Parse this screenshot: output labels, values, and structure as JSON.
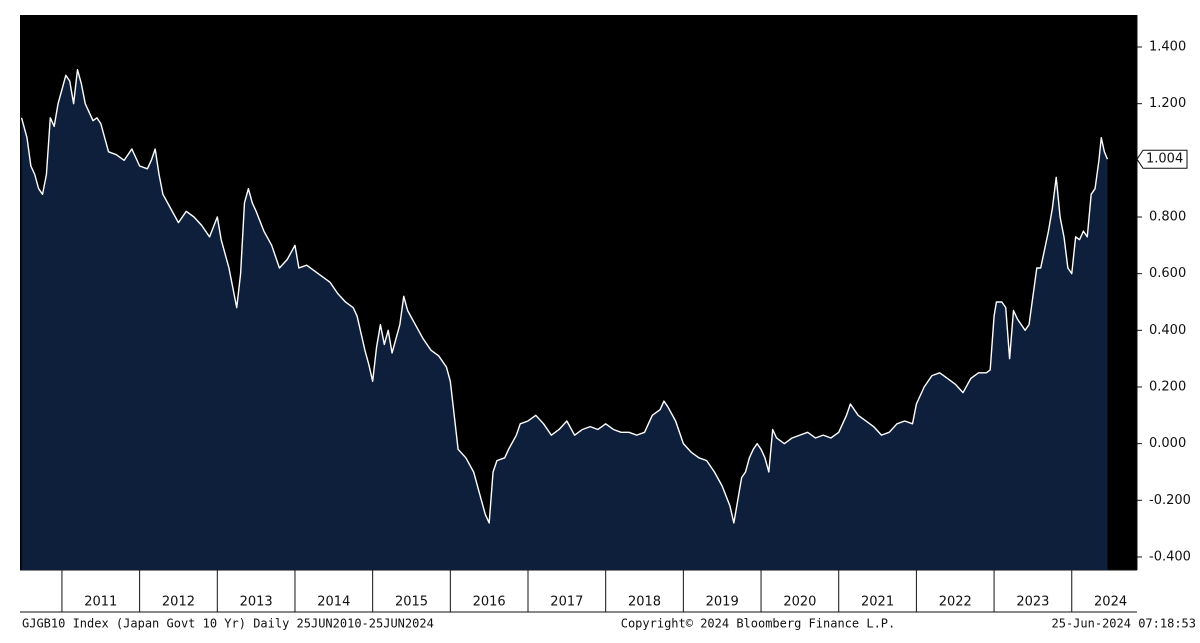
{
  "chart_data": {
    "type": "line",
    "footer_left": "GJGB10 Index (Japan Govt 10 Yr)  Daily 25JUN2010-25JUN2024",
    "footer_center": "Copyright© 2024 Bloomberg Finance L.P.",
    "footer_right": "25-Jun-2024 07:18:53",
    "xlim": [
      2010.46,
      2024.84
    ],
    "xticks": [
      2011,
      2012,
      2013,
      2014,
      2015,
      2016,
      2017,
      2018,
      2019,
      2020,
      2021,
      2022,
      2023,
      2024
    ],
    "ylim": [
      -0.446,
      1.513
    ],
    "yticks": [
      {
        "value": -0.4,
        "label": "-0.400"
      },
      {
        "value": -0.2,
        "label": "-0.200"
      },
      {
        "value": 0,
        "label": "0.000"
      },
      {
        "value": 0.2,
        "label": "0.200"
      },
      {
        "value": 0.4,
        "label": "0.400"
      },
      {
        "value": 0.6,
        "label": "0.600"
      },
      {
        "value": 0.8,
        "label": "0.800"
      },
      {
        "value": 1.0,
        "label": "1.000"
      },
      {
        "value": 1.2,
        "label": "1.200"
      },
      {
        "value": 1.4,
        "label": "1.400"
      }
    ],
    "line_color": "#ffffff",
    "fill_color": "#0e1f3c",
    "background": "#000000",
    "series": [
      {
        "name": "GJGB10 Index",
        "x": [
          2010.48,
          2010.55,
          2010.6,
          2010.65,
          2010.7,
          2010.75,
          2010.8,
          2010.85,
          2010.9,
          2010.95,
          2011.0,
          2011.05,
          2011.1,
          2011.15,
          2011.2,
          2011.25,
          2011.3,
          2011.35,
          2011.4,
          2011.45,
          2011.5,
          2011.55,
          2011.6,
          2011.7,
          2011.8,
          2011.9,
          2012.0,
          2012.1,
          2012.15,
          2012.2,
          2012.25,
          2012.3,
          2012.4,
          2012.5,
          2012.6,
          2012.7,
          2012.8,
          2012.9,
          2013.0,
          2013.05,
          2013.15,
          2013.25,
          2013.3,
          2013.35,
          2013.4,
          2013.45,
          2013.5,
          2013.6,
          2013.7,
          2013.8,
          2013.9,
          2014.0,
          2014.05,
          2014.15,
          2014.3,
          2014.45,
          2014.55,
          2014.65,
          2014.75,
          2014.8,
          2014.9,
          2014.95,
          2015.0,
          2015.05,
          2015.1,
          2015.15,
          2015.2,
          2015.25,
          2015.35,
          2015.4,
          2015.45,
          2015.55,
          2015.65,
          2015.75,
          2015.85,
          2015.95,
          2016.0,
          2016.05,
          2016.1,
          2016.2,
          2016.3,
          2016.35,
          2016.45,
          2016.5,
          2016.55,
          2016.6,
          2016.7,
          2016.75,
          2016.85,
          2016.9,
          2017.0,
          2017.1,
          2017.2,
          2017.3,
          2017.4,
          2017.5,
          2017.6,
          2017.7,
          2017.8,
          2017.9,
          2018.0,
          2018.1,
          2018.2,
          2018.3,
          2018.4,
          2018.5,
          2018.6,
          2018.7,
          2018.75,
          2018.8,
          2018.9,
          2019.0,
          2019.1,
          2019.2,
          2019.3,
          2019.4,
          2019.5,
          2019.6,
          2019.65,
          2019.7,
          2019.75,
          2019.8,
          2019.85,
          2019.9,
          2019.95,
          2020.0,
          2020.05,
          2020.1,
          2020.15,
          2020.2,
          2020.3,
          2020.4,
          2020.5,
          2020.6,
          2020.7,
          2020.8,
          2020.9,
          2021.0,
          2021.1,
          2021.15,
          2021.25,
          2021.35,
          2021.45,
          2021.55,
          2021.65,
          2021.75,
          2021.85,
          2021.95,
          2022.0,
          2022.1,
          2022.2,
          2022.3,
          2022.4,
          2022.5,
          2022.6,
          2022.7,
          2022.8,
          2022.9,
          2022.95,
          2023.0,
          2023.03,
          2023.1,
          2023.15,
          2023.2,
          2023.25,
          2023.3,
          2023.4,
          2023.45,
          2023.55,
          2023.6,
          2023.7,
          2023.75,
          2023.8,
          2023.85,
          2023.9,
          2023.95,
          2024.0,
          2024.05,
          2024.1,
          2024.15,
          2024.2,
          2024.25,
          2024.3,
          2024.35,
          2024.38,
          2024.42,
          2024.46
        ],
        "values": [
          1.15,
          1.08,
          0.98,
          0.95,
          0.9,
          0.88,
          0.95,
          1.15,
          1.12,
          1.2,
          1.25,
          1.3,
          1.28,
          1.2,
          1.32,
          1.27,
          1.2,
          1.17,
          1.14,
          1.15,
          1.13,
          1.08,
          1.03,
          1.02,
          1.0,
          1.04,
          0.98,
          0.97,
          1.0,
          1.04,
          0.95,
          0.88,
          0.83,
          0.78,
          0.82,
          0.8,
          0.77,
          0.73,
          0.8,
          0.72,
          0.62,
          0.48,
          0.6,
          0.85,
          0.9,
          0.85,
          0.82,
          0.75,
          0.7,
          0.62,
          0.65,
          0.7,
          0.62,
          0.63,
          0.6,
          0.57,
          0.53,
          0.5,
          0.48,
          0.45,
          0.33,
          0.28,
          0.22,
          0.34,
          0.42,
          0.35,
          0.4,
          0.32,
          0.42,
          0.52,
          0.47,
          0.42,
          0.37,
          0.33,
          0.31,
          0.27,
          0.22,
          0.1,
          -0.02,
          -0.05,
          -0.1,
          -0.15,
          -0.25,
          -0.28,
          -0.1,
          -0.06,
          -0.05,
          -0.02,
          0.03,
          0.07,
          0.08,
          0.1,
          0.07,
          0.03,
          0.05,
          0.08,
          0.03,
          0.05,
          0.06,
          0.05,
          0.07,
          0.05,
          0.04,
          0.04,
          0.03,
          0.04,
          0.1,
          0.12,
          0.15,
          0.13,
          0.08,
          0.0,
          -0.03,
          -0.05,
          -0.06,
          -0.1,
          -0.15,
          -0.22,
          -0.28,
          -0.2,
          -0.12,
          -0.1,
          -0.05,
          -0.02,
          0.0,
          -0.02,
          -0.05,
          -0.1,
          0.05,
          0.02,
          0.0,
          0.02,
          0.03,
          0.04,
          0.02,
          0.03,
          0.02,
          0.04,
          0.1,
          0.14,
          0.1,
          0.08,
          0.06,
          0.03,
          0.04,
          0.07,
          0.08,
          0.07,
          0.14,
          0.2,
          0.24,
          0.25,
          0.23,
          0.21,
          0.18,
          0.23,
          0.25,
          0.25,
          0.26,
          0.45,
          0.5,
          0.5,
          0.48,
          0.3,
          0.47,
          0.44,
          0.4,
          0.42,
          0.62,
          0.62,
          0.75,
          0.83,
          0.94,
          0.8,
          0.73,
          0.62,
          0.6,
          0.73,
          0.72,
          0.75,
          0.73,
          0.88,
          0.9,
          1.0,
          1.08,
          1.03,
          1.004
        ]
      }
    ]
  }
}
